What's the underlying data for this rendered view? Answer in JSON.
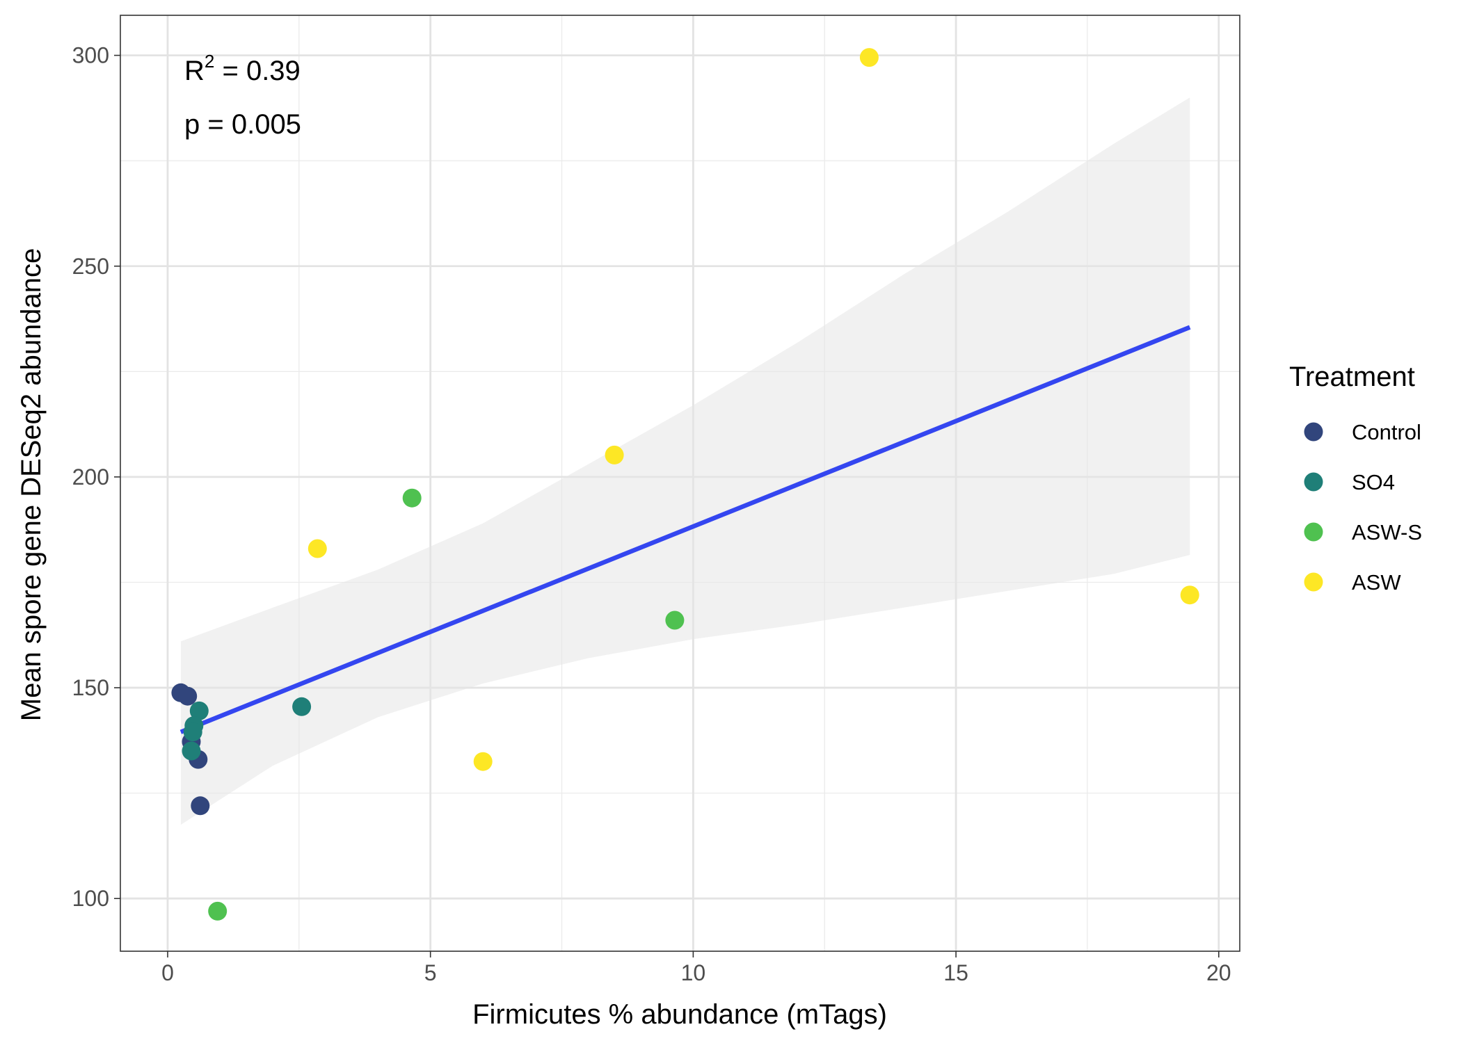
{
  "chart_data": {
    "type": "scatter",
    "xlabel": "Firmicutes % abundance (mTags)",
    "ylabel": "Mean spore gene DESeq2 abundance",
    "xlim": [
      -0.9,
      20.4
    ],
    "ylim": [
      87.5,
      309.5
    ],
    "x_ticks": [
      0,
      5,
      10,
      15,
      20
    ],
    "y_ticks": [
      100,
      150,
      200,
      250,
      300
    ],
    "grid": true,
    "legend": {
      "title": "Treatment",
      "placement": "right",
      "entries": [
        {
          "name": "Control",
          "color": "#31457c"
        },
        {
          "name": "SO4",
          "color": "#1f7f78"
        },
        {
          "name": "ASW-S",
          "color": "#4fc150"
        },
        {
          "name": "ASW",
          "color": "#fde725"
        }
      ]
    },
    "annotations": {
      "r2_label": "R",
      "r2_sup": "2",
      "r2_value": " = 0.39",
      "p_text": "p = 0.005"
    },
    "series": [
      {
        "name": "Control",
        "color": "#31457c",
        "points": [
          {
            "x": 0.25,
            "y": 148.8
          },
          {
            "x": 0.38,
            "y": 148.0
          },
          {
            "x": 0.45,
            "y": 137.2
          },
          {
            "x": 0.58,
            "y": 133.0
          },
          {
            "x": 0.62,
            "y": 122.0
          }
        ]
      },
      {
        "name": "SO4",
        "color": "#1f7f78",
        "points": [
          {
            "x": 0.6,
            "y": 144.5
          },
          {
            "x": 0.5,
            "y": 141.0
          },
          {
            "x": 0.48,
            "y": 139.5
          },
          {
            "x": 0.45,
            "y": 135.0
          },
          {
            "x": 2.55,
            "y": 145.5
          }
        ]
      },
      {
        "name": "ASW-S",
        "color": "#4fc150",
        "points": [
          {
            "x": 4.65,
            "y": 195.0
          },
          {
            "x": 9.65,
            "y": 166.0
          },
          {
            "x": 0.95,
            "y": 97.0
          }
        ]
      },
      {
        "name": "ASW",
        "color": "#fde725",
        "points": [
          {
            "x": 2.85,
            "y": 183.0
          },
          {
            "x": 8.5,
            "y": 205.2
          },
          {
            "x": 6.0,
            "y": 132.5
          },
          {
            "x": 13.35,
            "y": 299.5
          },
          {
            "x": 19.45,
            "y": 172.0
          }
        ]
      }
    ],
    "fit": {
      "color": "#3446f0",
      "x": [
        0.25,
        19.45
      ],
      "y": [
        139.5,
        235.5
      ]
    },
    "confidence_band": {
      "color": "#e6e6e6",
      "x": [
        0.25,
        2.0,
        4.0,
        6.0,
        8.0,
        10.0,
        12.0,
        14.0,
        16.0,
        18.0,
        19.45
      ],
      "upper": [
        161.0,
        169.0,
        178.0,
        189.0,
        203.0,
        217.0,
        232.0,
        248.0,
        263.0,
        279.0,
        290.0
      ],
      "lower": [
        117.5,
        131.5,
        143.0,
        151.0,
        157.0,
        161.5,
        165.0,
        169.0,
        173.0,
        177.0,
        181.5
      ]
    }
  }
}
